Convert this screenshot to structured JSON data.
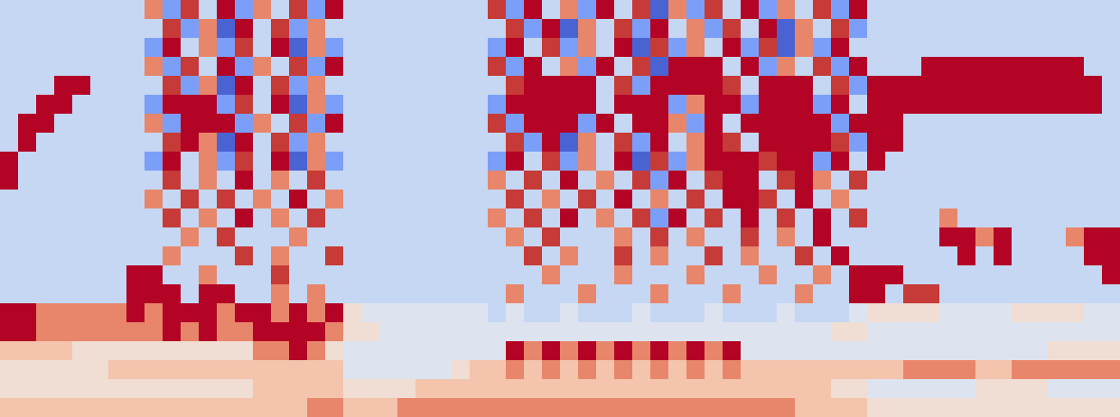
{
  "chart_data": {
    "type": "heatmap",
    "zlim": [
      0,
      9
    ],
    "xlim": [
      -0.5,
      61.5
    ],
    "ylim": [
      21.5,
      -0.5
    ],
    "tick_labels": false,
    "grid": false,
    "cells": [
      [
        3,
        3,
        3,
        3,
        3,
        3,
        3,
        3,
        7,
        2,
        8,
        3,
        9,
        2,
        7,
        3,
        8,
        2,
        9,
        3,
        3,
        3,
        3,
        3,
        3,
        3,
        3,
        8,
        2,
        9,
        3,
        7,
        2,
        9,
        3,
        8,
        1,
        7,
        2,
        8,
        3,
        9,
        2,
        7,
        3,
        8,
        2,
        9,
        3,
        3,
        3,
        3,
        3,
        3,
        3,
        3,
        3,
        3,
        3,
        3,
        3,
        3
      ],
      [
        3,
        3,
        3,
        3,
        3,
        3,
        3,
        3,
        3,
        8,
        2,
        7,
        1,
        9,
        3,
        8,
        2,
        7,
        3,
        3,
        3,
        3,
        3,
        3,
        3,
        3,
        3,
        3,
        8,
        2,
        9,
        1,
        7,
        3,
        8,
        2,
        9,
        3,
        7,
        2,
        8,
        3,
        9,
        1,
        7,
        3,
        8,
        2,
        3,
        3,
        3,
        3,
        3,
        3,
        3,
        3,
        3,
        3,
        3,
        3,
        3,
        3
      ],
      [
        3,
        3,
        3,
        3,
        3,
        3,
        3,
        3,
        2,
        9,
        3,
        7,
        2,
        8,
        3,
        9,
        1,
        7,
        2,
        3,
        3,
        3,
        3,
        3,
        3,
        3,
        3,
        2,
        9,
        3,
        8,
        2,
        7,
        3,
        9,
        1,
        8,
        2,
        7,
        3,
        9,
        2,
        8,
        1,
        7,
        2,
        9,
        3,
        3,
        3,
        3,
        3,
        3,
        3,
        3,
        3,
        3,
        3,
        3,
        3,
        3,
        3
      ],
      [
        3,
        3,
        3,
        3,
        3,
        3,
        3,
        3,
        7,
        2,
        8,
        3,
        9,
        2,
        7,
        3,
        8,
        2,
        9,
        3,
        3,
        3,
        3,
        3,
        3,
        3,
        3,
        8,
        2,
        9,
        3,
        7,
        2,
        9,
        3,
        8,
        1,
        9,
        9,
        9,
        3,
        9,
        2,
        7,
        3,
        8,
        2,
        9,
        3,
        3,
        3,
        9,
        9,
        9,
        9,
        9,
        9,
        9,
        9,
        9,
        3,
        3
      ],
      [
        3,
        3,
        3,
        9,
        9,
        3,
        3,
        3,
        3,
        8,
        2,
        7,
        1,
        9,
        3,
        8,
        2,
        7,
        3,
        3,
        3,
        3,
        3,
        3,
        3,
        3,
        3,
        3,
        8,
        9,
        9,
        9,
        9,
        3,
        8,
        2,
        9,
        9,
        9,
        9,
        8,
        3,
        9,
        9,
        9,
        3,
        8,
        2,
        9,
        9,
        9,
        9,
        9,
        9,
        9,
        9,
        9,
        9,
        9,
        9,
        9,
        3
      ],
      [
        3,
        3,
        9,
        9,
        3,
        3,
        3,
        3,
        2,
        9,
        9,
        9,
        2,
        8,
        3,
        9,
        1,
        7,
        2,
        3,
        3,
        3,
        3,
        3,
        3,
        3,
        3,
        2,
        9,
        9,
        9,
        9,
        9,
        3,
        9,
        9,
        9,
        2,
        7,
        9,
        9,
        2,
        9,
        9,
        9,
        2,
        9,
        3,
        9,
        9,
        9,
        9,
        9,
        9,
        9,
        9,
        9,
        9,
        9,
        9,
        9,
        3
      ],
      [
        3,
        9,
        9,
        3,
        3,
        3,
        3,
        3,
        7,
        2,
        9,
        9,
        9,
        2,
        7,
        3,
        8,
        2,
        9,
        3,
        3,
        3,
        3,
        3,
        3,
        3,
        3,
        8,
        2,
        9,
        9,
        9,
        2,
        9,
        3,
        9,
        9,
        7,
        2,
        9,
        3,
        9,
        9,
        9,
        9,
        9,
        2,
        9,
        9,
        9,
        3,
        3,
        3,
        3,
        3,
        3,
        3,
        3,
        3,
        3,
        3,
        3
      ],
      [
        3,
        9,
        3,
        3,
        3,
        3,
        3,
        3,
        3,
        8,
        9,
        7,
        1,
        9,
        3,
        8,
        2,
        7,
        3,
        3,
        3,
        3,
        3,
        3,
        3,
        3,
        3,
        3,
        8,
        2,
        9,
        1,
        7,
        3,
        8,
        2,
        9,
        3,
        7,
        9,
        8,
        3,
        9,
        9,
        9,
        9,
        8,
        2,
        9,
        9,
        3,
        3,
        3,
        3,
        3,
        3,
        3,
        3,
        3,
        3,
        3,
        3
      ],
      [
        9,
        3,
        3,
        3,
        3,
        3,
        3,
        3,
        2,
        9,
        3,
        7,
        2,
        8,
        3,
        9,
        1,
        7,
        2,
        3,
        3,
        3,
        3,
        3,
        3,
        3,
        3,
        2,
        9,
        3,
        8,
        2,
        7,
        3,
        9,
        1,
        8,
        2,
        7,
        9,
        9,
        9,
        8,
        9,
        9,
        2,
        9,
        3,
        9,
        3,
        3,
        3,
        3,
        3,
        3,
        3,
        3,
        3,
        3,
        3,
        3,
        3
      ],
      [
        9,
        3,
        3,
        3,
        3,
        3,
        3,
        3,
        3,
        8,
        3,
        7,
        3,
        9,
        3,
        7,
        3,
        8,
        3,
        3,
        3,
        3,
        3,
        3,
        3,
        3,
        3,
        7,
        3,
        8,
        3,
        9,
        3,
        7,
        3,
        8,
        2,
        9,
        3,
        8,
        9,
        9,
        3,
        8,
        9,
        7,
        3,
        8,
        3,
        3,
        3,
        3,
        3,
        3,
        3,
        3,
        3,
        3,
        3,
        3,
        3,
        3
      ],
      [
        3,
        3,
        3,
        3,
        3,
        3,
        3,
        3,
        7,
        3,
        8,
        3,
        8,
        3,
        7,
        3,
        9,
        3,
        7,
        3,
        3,
        3,
        3,
        3,
        3,
        3,
        3,
        3,
        8,
        3,
        7,
        3,
        8,
        3,
        9,
        3,
        7,
        3,
        8,
        3,
        9,
        9,
        8,
        3,
        9,
        3,
        7,
        3,
        3,
        3,
        3,
        3,
        3,
        3,
        3,
        3,
        3,
        3,
        3,
        3,
        3,
        3
      ],
      [
        3,
        3,
        3,
        3,
        3,
        3,
        3,
        3,
        3,
        8,
        3,
        7,
        3,
        9,
        3,
        7,
        3,
        8,
        3,
        3,
        3,
        3,
        3,
        3,
        3,
        3,
        3,
        7,
        3,
        8,
        3,
        9,
        3,
        7,
        3,
        8,
        2,
        9,
        3,
        8,
        3,
        9,
        3,
        8,
        3,
        9,
        3,
        8,
        3,
        3,
        3,
        3,
        7,
        3,
        3,
        3,
        3,
        3,
        3,
        3,
        3,
        3
      ],
      [
        3,
        3,
        3,
        3,
        3,
        3,
        3,
        3,
        3,
        3,
        7,
        3,
        8,
        3,
        3,
        3,
        7,
        3,
        3,
        3,
        3,
        3,
        3,
        3,
        3,
        3,
        3,
        3,
        7,
        3,
        8,
        3,
        3,
        3,
        7,
        3,
        8,
        3,
        7,
        3,
        3,
        8,
        3,
        7,
        3,
        9,
        3,
        3,
        3,
        3,
        3,
        3,
        9,
        9,
        7,
        9,
        3,
        3,
        3,
        7,
        9,
        9
      ],
      [
        3,
        3,
        3,
        3,
        3,
        3,
        3,
        3,
        3,
        7,
        3,
        3,
        3,
        8,
        3,
        7,
        3,
        3,
        8,
        3,
        3,
        3,
        3,
        3,
        3,
        3,
        3,
        3,
        3,
        8,
        3,
        7,
        3,
        3,
        8,
        3,
        7,
        3,
        3,
        8,
        3,
        7,
        3,
        3,
        8,
        3,
        9,
        3,
        3,
        3,
        3,
        3,
        3,
        9,
        3,
        9,
        3,
        3,
        3,
        3,
        9,
        9
      ],
      [
        3,
        3,
        3,
        3,
        3,
        3,
        3,
        9,
        9,
        3,
        3,
        7,
        3,
        3,
        3,
        8,
        3,
        3,
        3,
        3,
        3,
        3,
        3,
        3,
        3,
        3,
        3,
        3,
        3,
        3,
        7,
        3,
        3,
        3,
        7,
        3,
        3,
        3,
        7,
        3,
        3,
        3,
        7,
        3,
        3,
        7,
        3,
        9,
        9,
        9,
        3,
        3,
        3,
        3,
        3,
        3,
        3,
        3,
        3,
        3,
        3,
        9
      ],
      [
        3,
        3,
        3,
        3,
        3,
        3,
        3,
        9,
        9,
        9,
        3,
        9,
        9,
        3,
        3,
        7,
        3,
        7,
        3,
        3,
        3,
        3,
        3,
        3,
        3,
        3,
        3,
        3,
        7,
        3,
        3,
        3,
        7,
        3,
        3,
        3,
        7,
        3,
        3,
        3,
        7,
        3,
        3,
        3,
        7,
        3,
        3,
        9,
        9,
        3,
        8,
        8,
        3,
        3,
        3,
        3,
        3,
        3,
        3,
        3,
        3,
        3
      ],
      [
        9,
        9,
        7,
        7,
        7,
        7,
        7,
        9,
        7,
        9,
        9,
        9,
        7,
        9,
        9,
        7,
        9,
        7,
        9,
        5,
        4,
        4,
        4,
        4,
        4,
        4,
        4,
        3,
        4,
        3,
        3,
        4,
        3,
        3,
        3,
        4,
        3,
        3,
        3,
        4,
        3,
        3,
        3,
        4,
        3,
        3,
        3,
        4,
        5,
        5,
        5,
        5,
        4,
        4,
        4,
        4,
        5,
        5,
        5,
        5,
        4,
        4
      ],
      [
        9,
        9,
        7,
        7,
        7,
        7,
        7,
        7,
        7,
        9,
        7,
        9,
        7,
        7,
        9,
        9,
        9,
        9,
        7,
        5,
        5,
        4,
        4,
        4,
        4,
        4,
        4,
        4,
        4,
        4,
        4,
        4,
        4,
        4,
        4,
        4,
        4,
        4,
        4,
        4,
        4,
        4,
        4,
        4,
        4,
        4,
        5,
        5,
        4,
        4,
        4,
        4,
        4,
        4,
        4,
        4,
        4,
        4,
        4,
        4,
        4,
        4
      ],
      [
        6,
        6,
        6,
        6,
        5,
        5,
        5,
        5,
        5,
        5,
        5,
        5,
        5,
        5,
        7,
        7,
        9,
        7,
        5,
        4,
        4,
        4,
        4,
        4,
        4,
        4,
        4,
        4,
        9,
        7,
        9,
        7,
        9,
        7,
        9,
        7,
        9,
        7,
        9,
        7,
        9,
        4,
        4,
        4,
        4,
        4,
        4,
        4,
        4,
        4,
        4,
        4,
        4,
        4,
        4,
        4,
        4,
        4,
        5,
        5,
        5,
        5
      ],
      [
        5,
        5,
        5,
        5,
        5,
        5,
        6,
        6,
        6,
        6,
        6,
        6,
        6,
        6,
        6,
        6,
        6,
        6,
        6,
        4,
        4,
        4,
        4,
        4,
        4,
        5,
        6,
        6,
        7,
        6,
        7,
        6,
        7,
        6,
        7,
        6,
        7,
        6,
        7,
        6,
        7,
        6,
        6,
        6,
        6,
        6,
        6,
        6,
        6,
        6,
        7,
        7,
        7,
        7,
        6,
        6,
        7,
        7,
        7,
        7,
        7,
        7
      ],
      [
        5,
        5,
        5,
        5,
        5,
        5,
        5,
        5,
        5,
        5,
        5,
        5,
        5,
        5,
        6,
        6,
        6,
        6,
        6,
        5,
        5,
        5,
        5,
        6,
        6,
        6,
        6,
        6,
        6,
        6,
        6,
        6,
        6,
        6,
        6,
        6,
        6,
        6,
        6,
        6,
        6,
        6,
        6,
        6,
        6,
        6,
        5,
        5,
        4,
        4,
        4,
        4,
        4,
        4,
        5,
        5,
        5,
        5,
        4,
        4,
        4,
        4
      ],
      [
        6,
        6,
        6,
        6,
        6,
        6,
        6,
        6,
        6,
        6,
        6,
        6,
        6,
        6,
        6,
        6,
        6,
        7,
        7,
        6,
        6,
        6,
        7,
        7,
        7,
        7,
        7,
        7,
        7,
        7,
        7,
        7,
        7,
        7,
        7,
        7,
        7,
        7,
        7,
        7,
        7,
        7,
        7,
        7,
        6,
        6,
        6,
        6,
        5,
        5,
        5,
        5,
        5,
        5,
        5,
        5,
        5,
        5,
        5,
        5,
        5,
        5
      ]
    ]
  }
}
